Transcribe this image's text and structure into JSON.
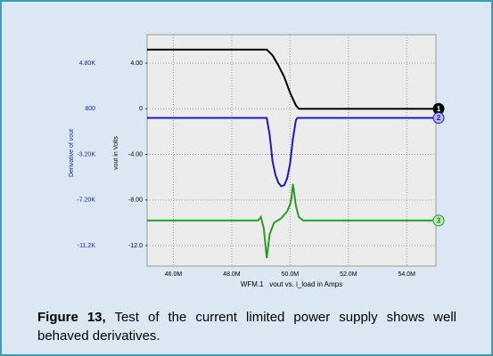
{
  "chart_data": {
    "type": "line",
    "x_label": "WFM.1   vout vs. i_load in Amps",
    "y_label": "vout in Volts",
    "y2_label": "Derivative of vout",
    "caption_label": "Figure 13,",
    "caption": "Test of the current limited power supply shows well behaved derivatives.",
    "xlim": [
      45100000,
      55000000
    ],
    "xticks": [
      {
        "value": 46000000,
        "label": "46.0M"
      },
      {
        "value": 48000000,
        "label": "48.0M"
      },
      {
        "value": 50000000,
        "label": "50.0M"
      },
      {
        "value": 52000000,
        "label": "52.0M"
      },
      {
        "value": 54000000,
        "label": "54.0M"
      }
    ],
    "ylim": [
      -13.8,
      6.5
    ],
    "yticks": [
      {
        "value": 4,
        "label": "4.00"
      },
      0,
      {
        "value": -4,
        "label": "-4.00"
      },
      {
        "value": -8,
        "label": "-8.00"
      },
      {
        "value": -12,
        "label": "-12.0"
      }
    ],
    "y2lim": [
      -13000,
      7300
    ],
    "y2ticks": [
      {
        "value": 4800,
        "label": "4.80K"
      },
      800,
      {
        "value": -3200,
        "label": "-3.20K"
      },
      {
        "value": -7200,
        "label": "-7.20K"
      },
      {
        "value": -11200,
        "label": "-11.2K"
      }
    ],
    "grid": true,
    "series": [
      {
        "name": "1",
        "color": "#000000",
        "marker_fill": "#000000",
        "marker_text": "#ffffff",
        "x": [
          45100000,
          49200000,
          49400000,
          49600000,
          49800000,
          50000000,
          50200000,
          50300000,
          55000000
        ],
        "values": [
          5.2,
          5.2,
          4.7,
          3.8,
          2.8,
          1.4,
          0.3,
          0,
          0
        ]
      },
      {
        "name": "2",
        "color": "#1c1cb0",
        "axis": "y2",
        "marker_fill": "#b8b8f0",
        "marker_text": "#1c1cb0",
        "x": [
          45100000,
          49200000,
          49300000,
          49400000,
          49500000,
          49600000,
          49700000,
          49800000,
          49900000,
          50000000,
          50100000,
          50200000,
          50250000,
          55000000
        ],
        "values": [
          0,
          0,
          -1500,
          -3800,
          -5000,
          -5700,
          -6000,
          -5900,
          -5300,
          -4000,
          -1800,
          -200,
          0,
          0
        ]
      },
      {
        "name": "3",
        "color": "#2a9a2a",
        "marker_fill": "#b8ecb8",
        "marker_text": "#1e7a1e",
        "x": [
          45100000,
          48900000,
          49000000,
          49100000,
          49200000,
          49300000,
          49450000,
          49700000,
          49900000,
          50000000,
          50050000,
          50100000,
          50200000,
          50300000,
          50450000,
          55000000
        ],
        "values": [
          -9.8,
          -9.8,
          -9.5,
          -10.5,
          -13.1,
          -11,
          -10,
          -9.6,
          -9,
          -8.4,
          -7.8,
          -6.6,
          -8.5,
          -9.5,
          -9.8,
          -9.8
        ]
      }
    ]
  }
}
